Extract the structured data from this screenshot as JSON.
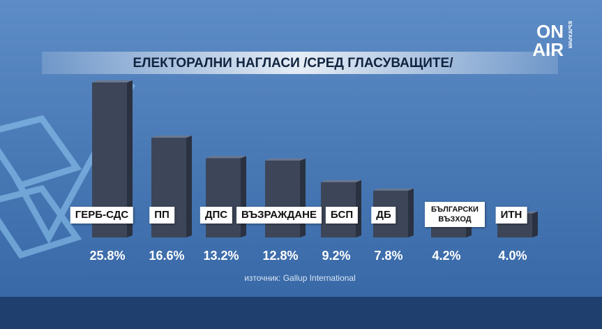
{
  "chart_data": {
    "type": "bar",
    "title": "ЕЛЕКТОРАЛНИ НАГЛАСИ /СРЕД ГЛАСУВАЩИТЕ/",
    "categories": [
      "ГЕРБ-СДС",
      "ПП",
      "ДПС",
      "ВЪЗРАЖДАНЕ",
      "БСП",
      "ДБ",
      "БЪЛГАРСКИ ВЪЗХОД",
      "ИТН"
    ],
    "values": [
      25.8,
      16.6,
      13.2,
      12.8,
      9.2,
      7.8,
      4.2,
      4.0
    ],
    "value_labels": [
      "25.8%",
      "16.6%",
      "13.2%",
      "12.8%",
      "9.2%",
      "7.8%",
      "4.2%",
      "4.0%"
    ],
    "color": "#3d4658",
    "source": "източник: Gallup International"
  },
  "logo": {
    "line1": "ON",
    "line2": "AIR",
    "side": "БЪЛГАРИЯ"
  }
}
